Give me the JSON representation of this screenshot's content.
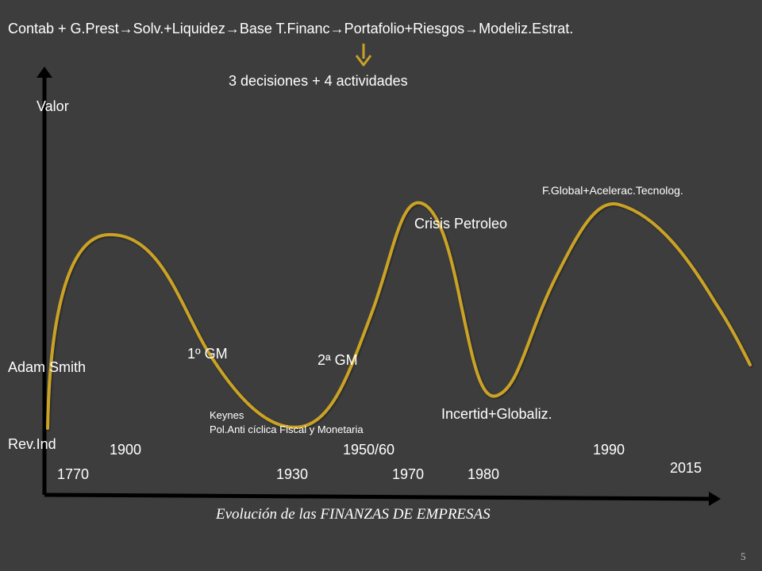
{
  "header": {
    "steps": [
      "Contab + G.Prest",
      "Solv.+Liquidez",
      "Base T.Financ",
      "Portafolio+Riesgos",
      "Modeliz.Estrat."
    ],
    "arrow_glyph": "→",
    "subtitle": "3 decisiones + 4 actividades"
  },
  "axes": {
    "y_label": "Valor",
    "x_caption_prefix": "Evolución de las ",
    "x_caption_emph": "FINANZAS DE EMPRESAS"
  },
  "labels": {
    "adam_smith": "Adam Smith",
    "rev_ind": "Rev.Ind",
    "gm1": "1º GM",
    "gm2": "2ª GM",
    "keynes_1": "Keynes",
    "keynes_2": "Pol.Anti cíclica Fiscal y Monetaria",
    "crisis": "Crisis Petroleo",
    "incertid": "Incertid+Globaliz.",
    "fglobal": "F.Global+Acelerac.Tecnolog."
  },
  "years": {
    "y1770": "1770",
    "y1900": "1900",
    "y1930": "1930",
    "y1950": "1950/60",
    "y1970": "1970",
    "y1980": "1980",
    "y1990": "1990",
    "y2015": "2015"
  },
  "colors": {
    "curve": "#c9a227",
    "down_arrow": "#c9a227",
    "axis": "#000000",
    "background": "#3d3d3d"
  },
  "page_number": "5"
}
